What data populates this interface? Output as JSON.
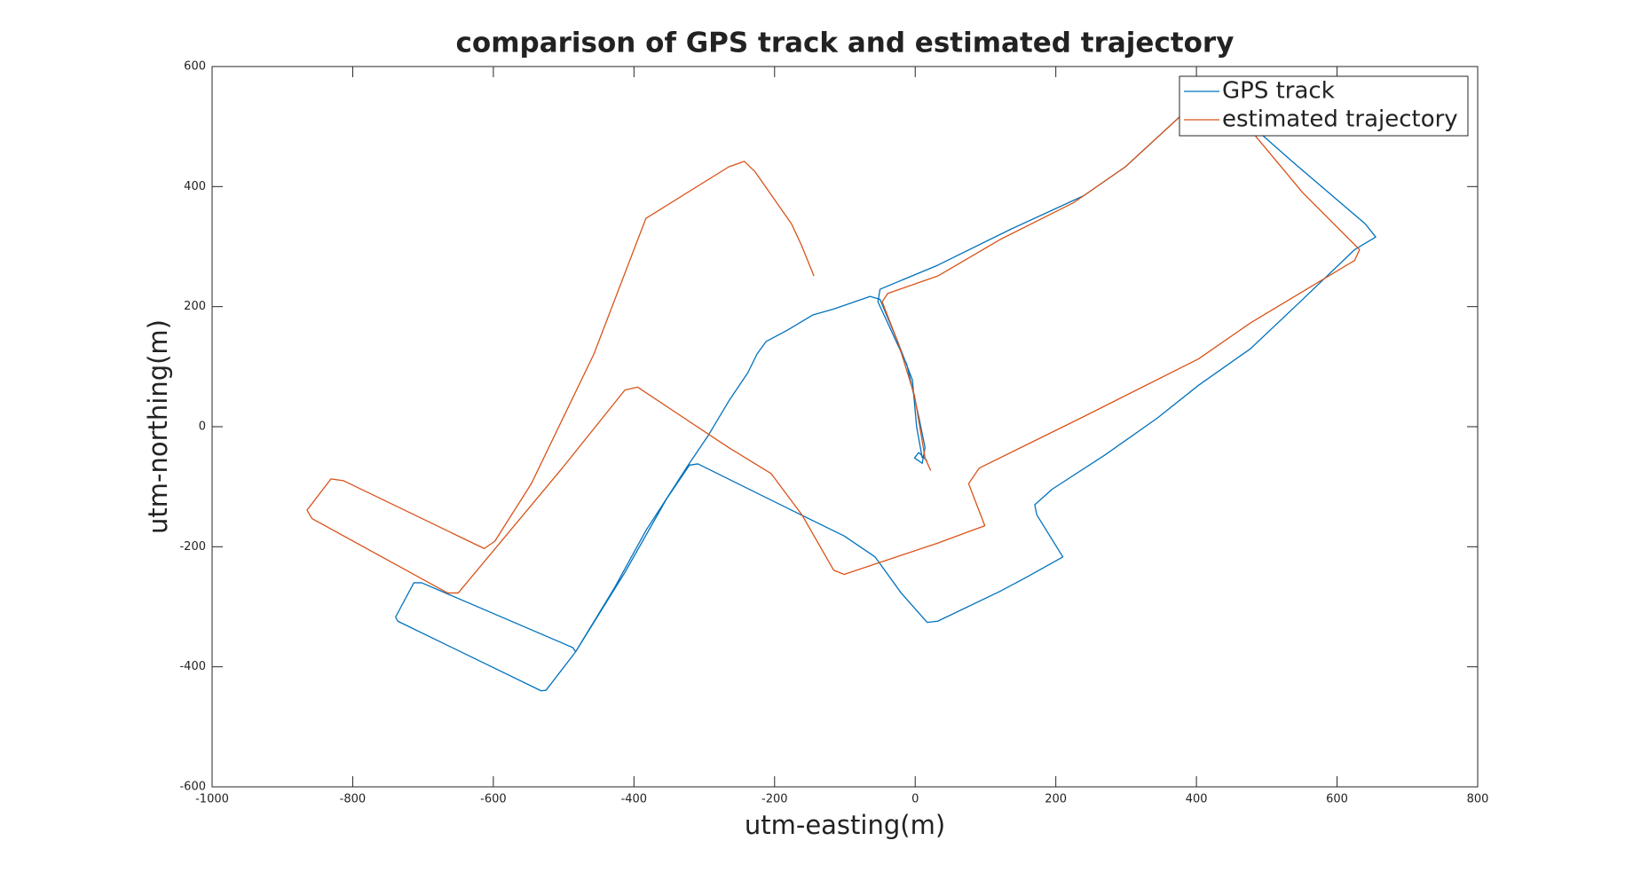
{
  "chart_data": {
    "type": "line",
    "title": "comparison of GPS track and estimated trajectory",
    "xlabel": "utm-easting(m)",
    "ylabel": "utm-northing(m)",
    "xlim": [
      -1000,
      800
    ],
    "ylim": [
      -600,
      600
    ],
    "xticks": [
      -1000,
      -800,
      -600,
      -400,
      -200,
      0,
      200,
      400,
      600,
      800
    ],
    "yticks": [
      -600,
      -400,
      -200,
      0,
      200,
      400,
      600
    ],
    "grid": false,
    "legend": "northeast",
    "series": [
      {
        "name": "GPS track",
        "color": "#0072bd",
        "x": [
          10,
          2,
          -4,
          -24,
          -50,
          -64,
          -116,
          -146,
          -183,
          -212,
          -225,
          -238,
          -265,
          -294,
          -324,
          -383,
          -428,
          -483,
          -525,
          -532,
          -736,
          -739,
          -713,
          -702,
          -487,
          -483,
          -413,
          -354,
          -321,
          -309,
          -176,
          -101,
          -57,
          -20,
          17,
          32,
          121,
          158,
          210,
          173,
          170,
          195,
          270,
          344,
          403,
          477,
          551,
          625,
          655,
          640,
          536,
          477,
          440,
          388,
          299,
          240,
          136,
          32,
          -50,
          -53,
          -12,
          5,
          14,
          10,
          -1,
          5,
          17
        ],
        "y": [
          -52,
          0,
          78,
          139,
          212,
          217,
          196,
          186,
          160,
          142,
          121,
          90,
          43,
          -14,
          -66,
          -173,
          -269,
          -375,
          -439,
          -440,
          -324,
          -317,
          -260,
          -260,
          -368,
          -375,
          -243,
          -121,
          -64,
          -62,
          -139,
          -182,
          -217,
          -277,
          -326,
          -324,
          -274,
          -251,
          -217,
          -147,
          -130,
          -104,
          -47,
          14,
          69,
          130,
          212,
          295,
          316,
          338,
          442,
          503,
          538,
          529,
          433,
          385,
          329,
          269,
          229,
          208,
          104,
          17,
          -35,
          -61,
          -52,
          -43,
          -57
        ]
      },
      {
        "name": "estimated trajectory",
        "color": "#d95319",
        "x": [
          22,
          14,
          -1,
          -24,
          -47,
          -39,
          32,
          121,
          225,
          299,
          388,
          477,
          551,
          632,
          625,
          477,
          403,
          240,
          91,
          76,
          99,
          32,
          -27,
          -101,
          -116,
          -161,
          -205,
          -265,
          -395,
          -413,
          -502,
          -650,
          -665,
          -858,
          -865,
          -831,
          -813,
          -613,
          -598,
          -546,
          -457,
          -383,
          -265,
          -243,
          -228,
          -176,
          -162,
          -144
        ],
        "y": [
          -73,
          -52,
          52,
          139,
          208,
          222,
          251,
          312,
          373,
          433,
          529,
          494,
          390,
          295,
          277,
          173,
          113,
          17,
          -69,
          -95,
          -165,
          -194,
          -217,
          -246,
          -239,
          -147,
          -78,
          -35,
          66,
          61,
          -69,
          -277,
          -277,
          -153,
          -139,
          -87,
          -90,
          -203,
          -191,
          -95,
          121,
          347,
          433,
          442,
          425,
          338,
          303,
          251
        ]
      }
    ]
  }
}
